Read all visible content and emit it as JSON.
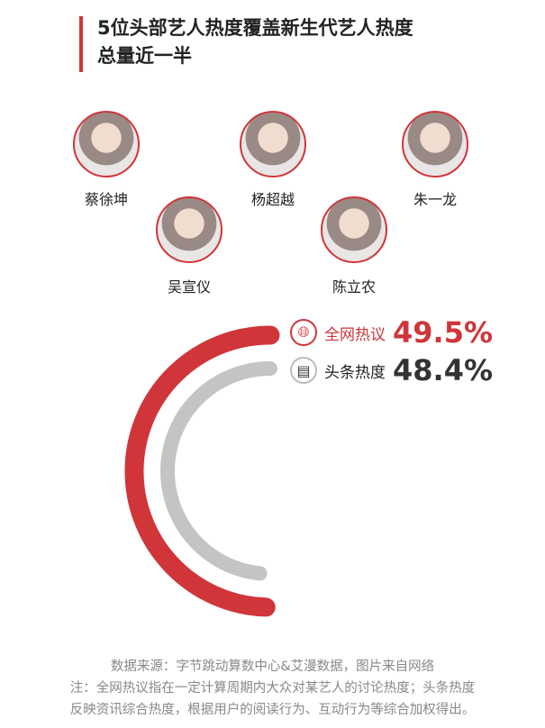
{
  "title": {
    "line1": "5位头部艺人热度覆盖新生代艺人热度",
    "line2": "总量近一半"
  },
  "artists": [
    {
      "name": "蔡徐坤"
    },
    {
      "name": "吴宣仪"
    },
    {
      "name": "杨超越"
    },
    {
      "name": "陈立农"
    },
    {
      "name": "朱一龙"
    }
  ],
  "chart_data": {
    "type": "radial-bar",
    "series": [
      {
        "name": "全网热议",
        "value": 49.5,
        "label": "49.5%",
        "color": "#d0353a",
        "icon": "globe-icon"
      },
      {
        "name": "头条热度",
        "value": 48.4,
        "label": "48.4%",
        "color": "#c4c4c4",
        "icon": "newspaper-icon"
      }
    ],
    "max": 100
  },
  "footer": {
    "source": "数据来源：字节跳动算数中心&艾漫数据，图片来自网络",
    "note1": "注：全网热议指在一定计算周期内大众对某艺人的讨论热度；头条热度",
    "note2": "反映资讯综合热度，根据用户的阅读行为、互动行为等综合加权得出。"
  },
  "colors": {
    "accent": "#d0353a",
    "gray": "#c4c4c4",
    "text": "#222222"
  }
}
